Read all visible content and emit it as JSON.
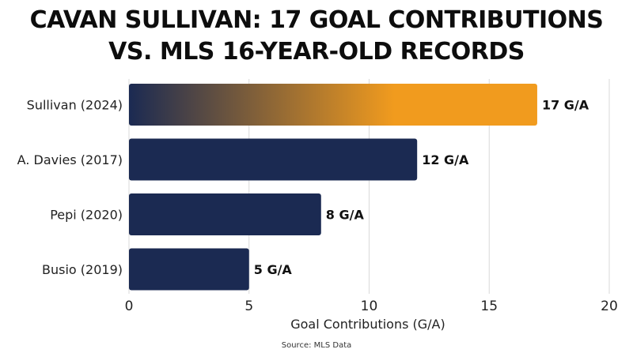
{
  "title_line1": "CAVAN SULLIVAN: 17 GOAL CONTRIBUTIONS",
  "title_line2": "VS. MLS 16-YEAR-OLD RECORDS",
  "source": "Source: MLS Data",
  "colors": {
    "bar": "#1b2a52",
    "highlight_start": "#1b2a52",
    "highlight_end": "#f19b1e",
    "grid": "#d9d9d9"
  },
  "chart_data": {
    "type": "bar",
    "orientation": "horizontal",
    "categories": [
      "Sullivan (2024)",
      "A. Davies (2017)",
      "Pepi (2020)",
      "Busio (2019)"
    ],
    "values": [
      17,
      12,
      8,
      5
    ],
    "data_labels": [
      "17 G/A",
      "12 G/A",
      "8 G/A",
      "5 G/A"
    ],
    "highlight_index": 0,
    "xlabel": "Goal Contributions (G/A)",
    "ylabel": "",
    "xlim": [
      0,
      20
    ],
    "xticks": [
      0,
      5,
      10,
      15,
      20
    ],
    "xtick_labels": [
      "0",
      "5",
      "10",
      "15",
      "20"
    ],
    "grid": true
  }
}
